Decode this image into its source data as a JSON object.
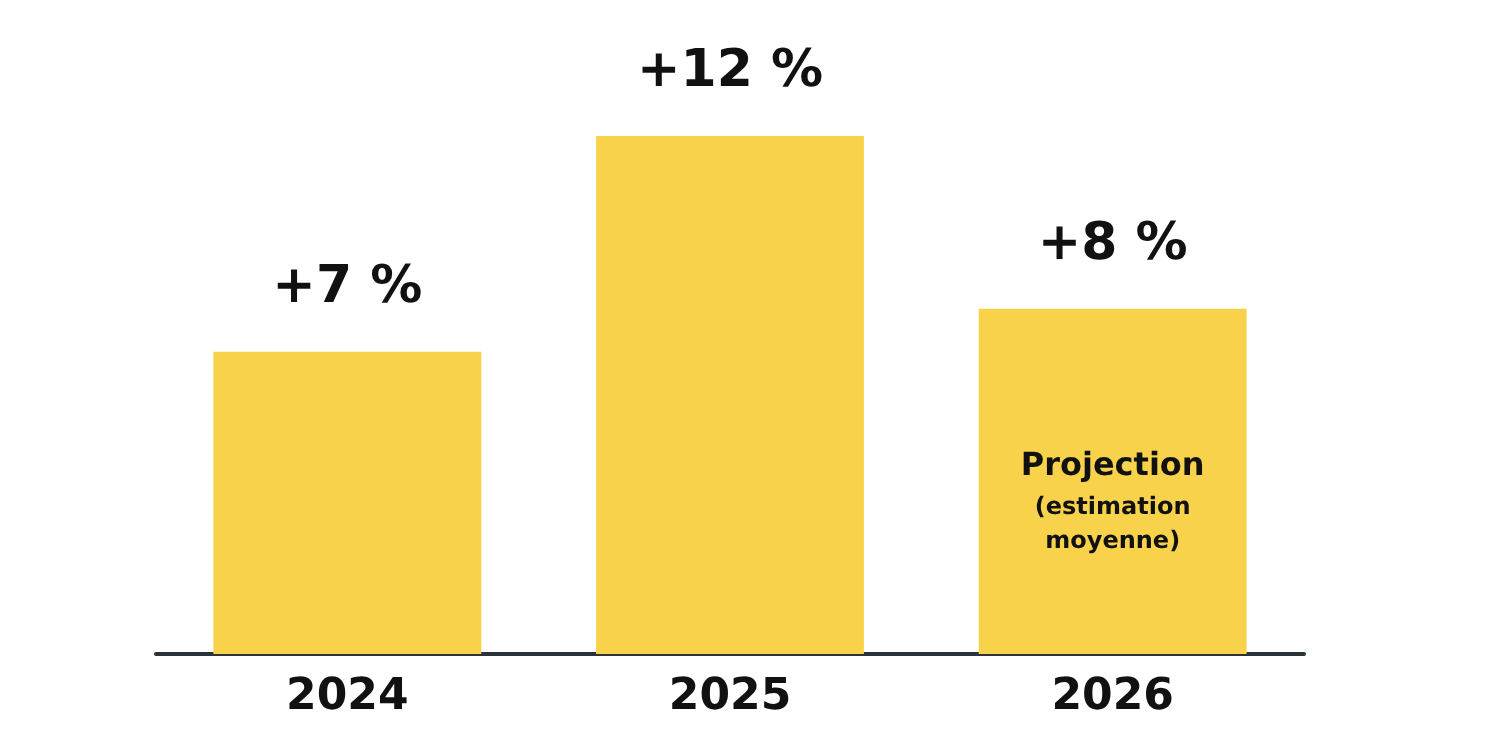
{
  "chart_data": {
    "type": "bar",
    "categories": [
      "2024",
      "2025",
      "2026"
    ],
    "values": [
      7,
      12,
      8
    ],
    "value_labels": [
      "+7 %",
      "+12 %",
      "+8 %"
    ],
    "color": "#f8d24b",
    "tick_labels": "x",
    "annotations": [
      "Projection",
      "(estimation\nmoyenne)"
    ]
  }
}
